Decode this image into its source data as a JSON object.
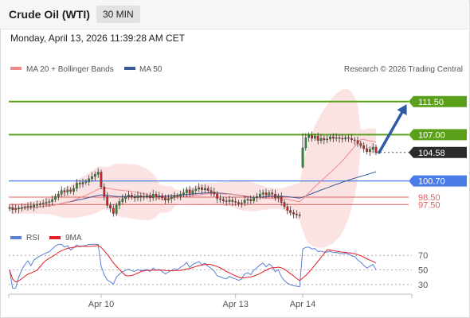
{
  "header": {
    "title": "Crude Oil (WTI)",
    "timeframe": "30 MIN"
  },
  "datetime": "Monday, April 13, 2026 11:39:28 AM CET",
  "legend": {
    "ma20_label": "MA 20 + Bollinger Bands",
    "ma50_label": "MA 50",
    "ma20_color": "#f08a8a",
    "ma50_color": "#3a5a99"
  },
  "credit": "Research © 2026 Trading Central",
  "rsi_legend": {
    "rsi_label": "RSI",
    "ma_label": "9MA",
    "rsi_color": "#5b7fd6",
    "ma_color": "#e31e24"
  },
  "colors": {
    "green_level": "#5aa01a",
    "blue_level": "#4a7de8",
    "red_level": "#e06060",
    "arrow": "#2f5aa3",
    "band_fill": "#fbd9d9",
    "candle_up": "#2e8b2e",
    "candle_down": "#c82828"
  },
  "chart_data": {
    "type": "candlestick",
    "price_range": [
      94.5,
      114.5
    ],
    "levels": [
      {
        "label": "111.50",
        "value": 111.5,
        "kind": "target"
      },
      {
        "label": "107.00",
        "value": 107.0,
        "kind": "target"
      },
      {
        "label": "104.58",
        "value": 104.58,
        "kind": "last-price"
      },
      {
        "label": "100.70",
        "value": 100.7,
        "kind": "pivot"
      },
      {
        "label": "98.50",
        "value": 98.5,
        "kind": "support"
      },
      {
        "label": "97.50",
        "value": 97.5,
        "kind": "support"
      }
    ],
    "x_ticks": [
      {
        "label": "Apr 10",
        "index": 30
      },
      {
        "label": "Apr 13",
        "index": 74
      },
      {
        "label": "Apr 14",
        "index": 96
      }
    ],
    "closes": [
      97.1,
      96.8,
      96.9,
      97.0,
      97.1,
      97.2,
      97.3,
      97.2,
      97.4,
      97.5,
      97.6,
      97.7,
      97.8,
      97.9,
      98.2,
      98.6,
      98.9,
      99.4,
      99.2,
      99.5,
      99.3,
      99.7,
      100.4,
      100.3,
      100.5,
      100.6,
      101.0,
      101.3,
      101.6,
      101.9,
      99.9,
      98.6,
      97.4,
      97.0,
      96.3,
      97.4,
      97.9,
      98.3,
      98.6,
      98.8,
      98.5,
      98.4,
      98.7,
      98.5,
      98.6,
      98.7,
      98.4,
      98.9,
      98.6,
      98.7,
      98.4,
      98.1,
      98.3,
      98.5,
      98.7,
      98.6,
      98.9,
      99.1,
      99.5,
      99.0,
      99.4,
      99.6,
      99.8,
      99.5,
      99.7,
      99.4,
      99.2,
      98.9,
      98.3,
      98.2,
      98.0,
      97.9,
      98.1,
      97.9,
      97.8,
      97.6,
      97.7,
      98.1,
      98.2,
      98.0,
      98.4,
      98.6,
      98.9,
      99.1,
      98.8,
      99.1,
      98.9,
      98.4,
      98.6,
      97.8,
      97.2,
      96.7,
      96.4,
      96.2,
      96.1,
      96.0,
      105.2,
      106.6,
      106.9,
      106.5,
      106.8,
      106.2,
      106.5,
      106.3,
      106.4,
      106.7,
      106.5,
      106.6,
      106.5,
      106.4,
      106.6,
      106.5,
      106.3,
      106.2,
      105.8,
      105.5,
      105.1,
      104.7,
      105.0,
      105.3,
      104.58
    ],
    "rsi": {
      "levels": [
        70,
        50,
        30
      ],
      "range": [
        20,
        80
      ]
    },
    "projection": {
      "from": 104.58,
      "to": 111.5,
      "direction": "up"
    }
  }
}
